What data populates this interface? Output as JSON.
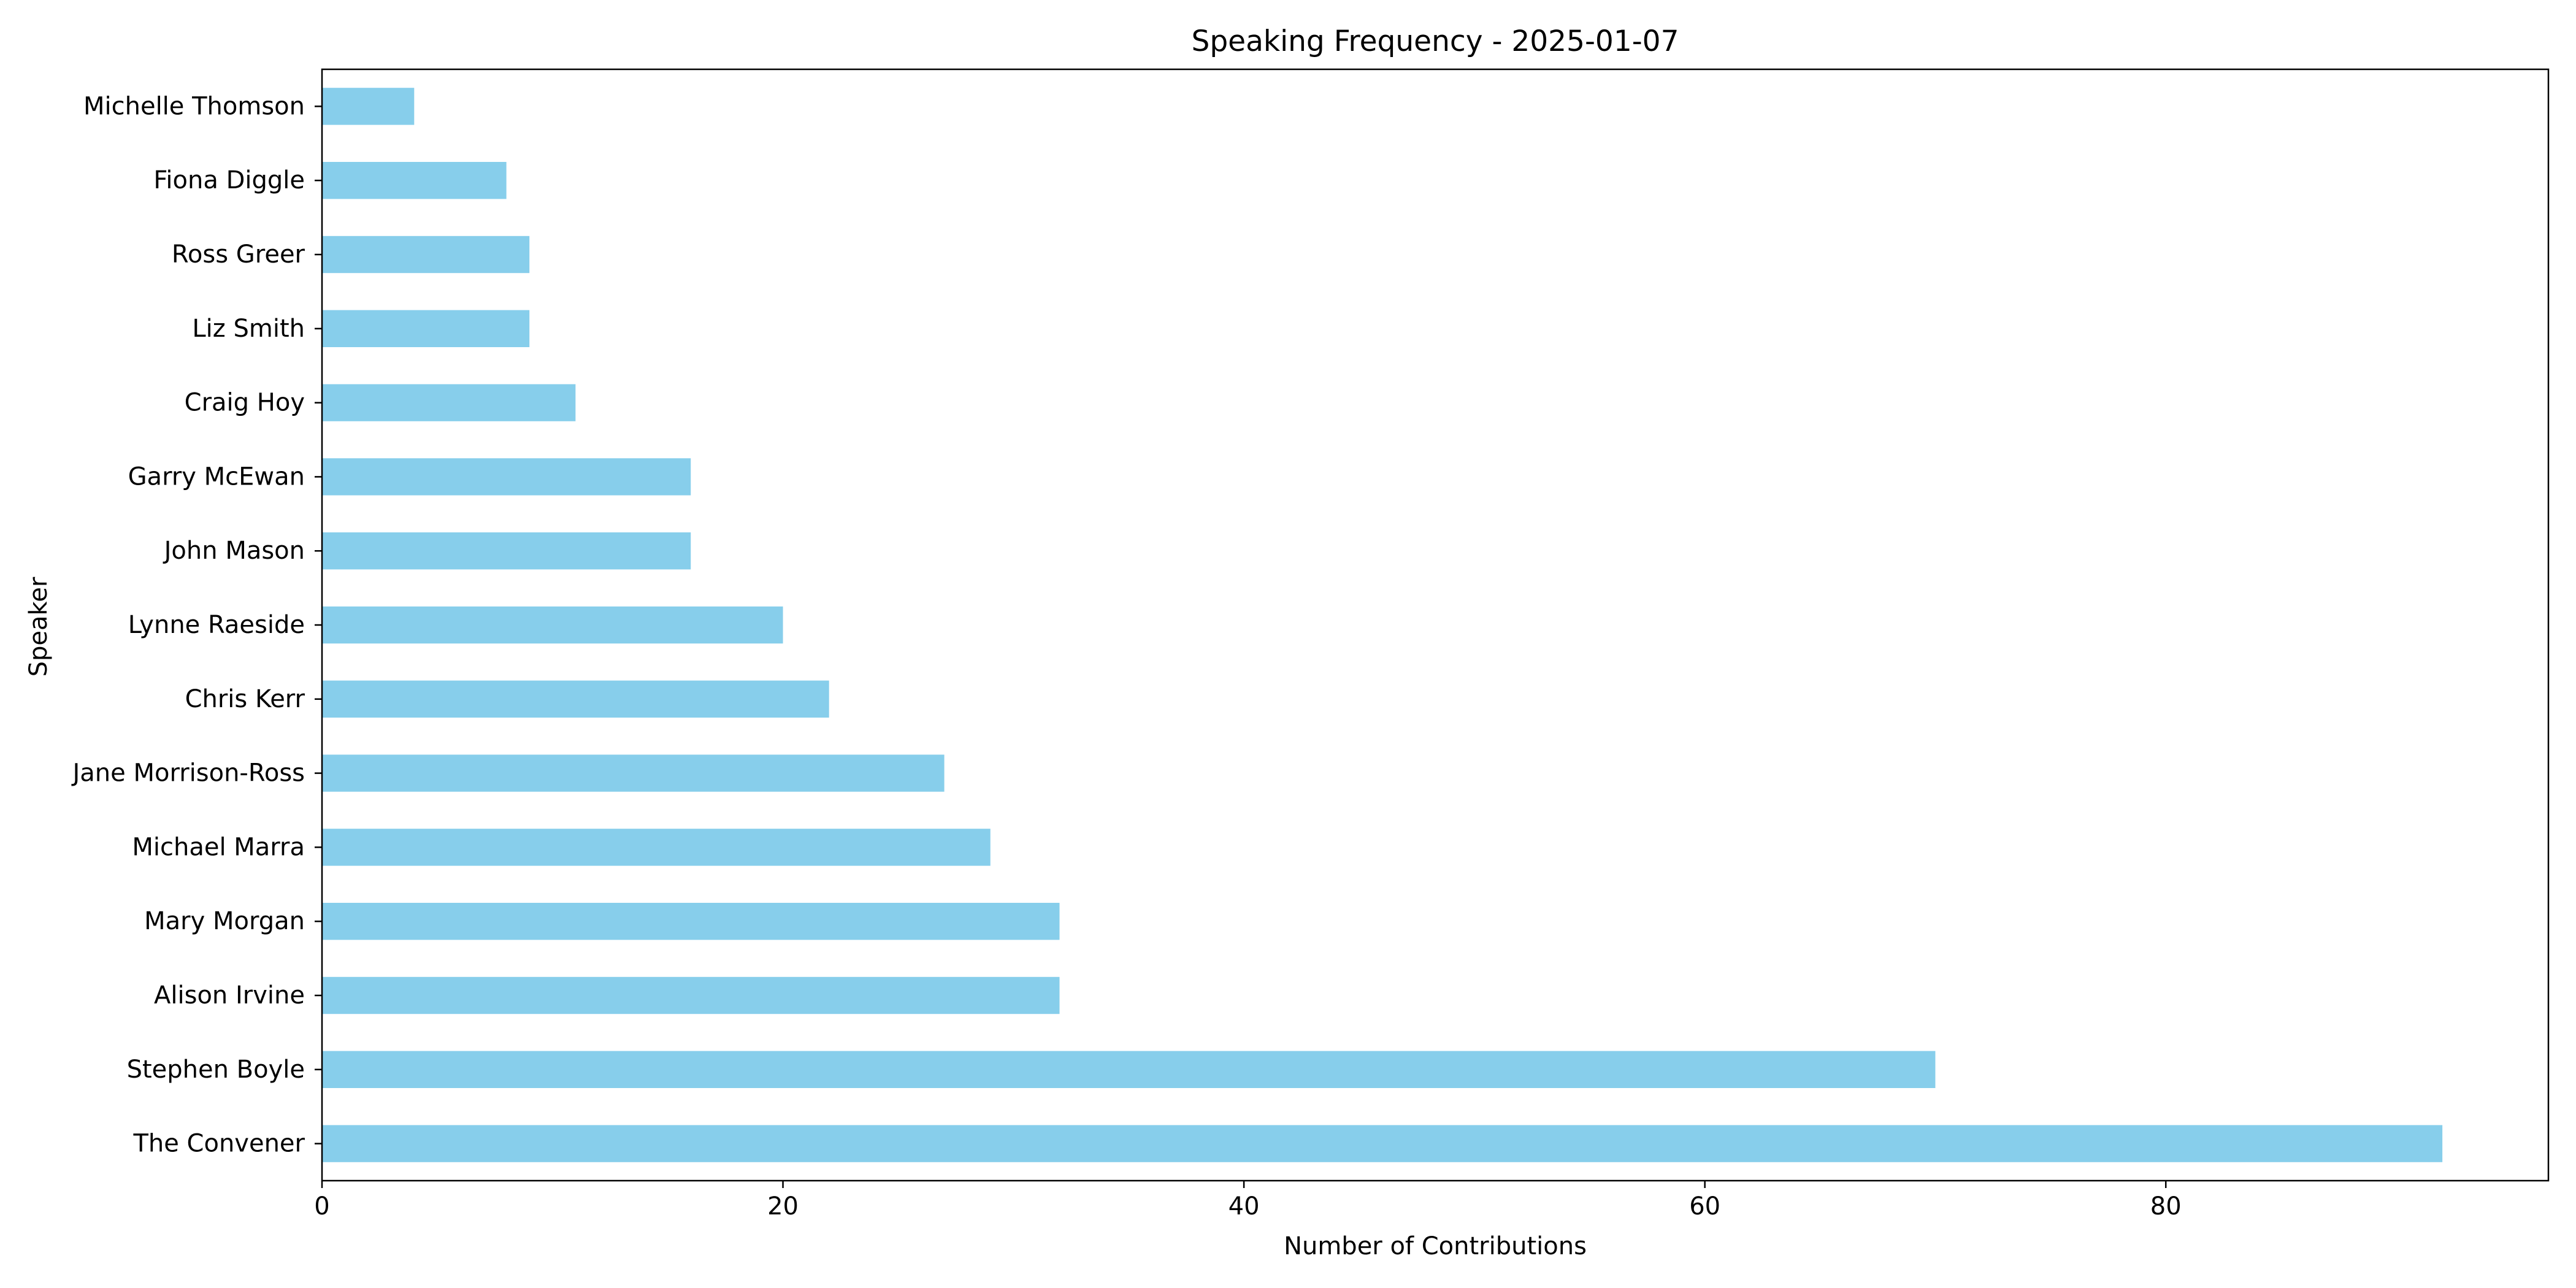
{
  "chart_data": {
    "type": "bar",
    "orientation": "horizontal",
    "title": "Speaking Frequency - 2025-01-07",
    "xlabel": "Number of Contributions",
    "ylabel": "Speaker",
    "categories": [
      "The Convener",
      "Stephen Boyle",
      "Alison Irvine",
      "Mary Morgan",
      "Michael Marra",
      "Jane Morrison-Ross",
      "Chris Kerr",
      "Lynne Raeside",
      "John Mason",
      "Garry McEwan",
      "Craig Hoy",
      "Liz Smith",
      "Ross Greer",
      "Fiona Diggle",
      "Michelle Thomson"
    ],
    "values": [
      92,
      70,
      32,
      32,
      29,
      27,
      22,
      20,
      16,
      16,
      11,
      9,
      9,
      8,
      4
    ],
    "xlim": [
      0,
      96.6
    ],
    "xticks": [
      0,
      20,
      40,
      60,
      80
    ],
    "bar_color": "#87ceeb",
    "grid": false,
    "legend": "none"
  }
}
